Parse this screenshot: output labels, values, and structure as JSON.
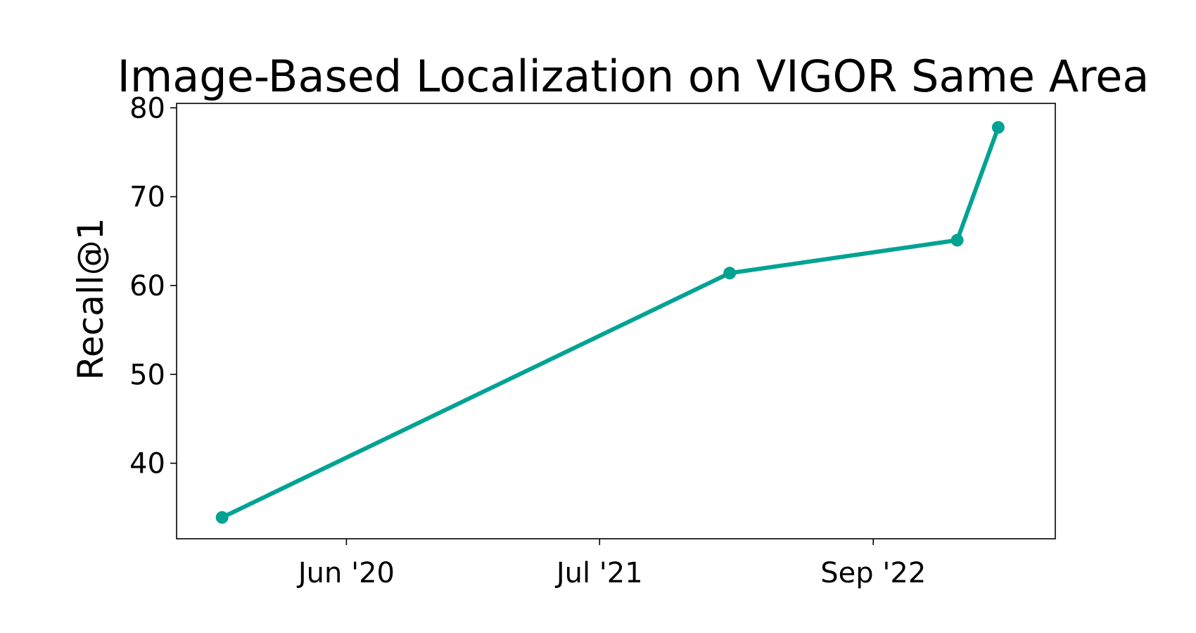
{
  "chart_data": {
    "type": "line",
    "title": "Image-Based Localization on VIGOR Same Area",
    "xlabel": "",
    "ylabel": "Recall@1",
    "x_type": "date",
    "x_ticks": [
      {
        "date": "2020-06-01",
        "label": "Jun '20"
      },
      {
        "date": "2021-07-01",
        "label": "Jul '21"
      },
      {
        "date": "2022-09-01",
        "label": "Sep '22"
      }
    ],
    "xlim": [
      "2019-09-10",
      "2023-06-12"
    ],
    "y_ticks": [
      40,
      50,
      60,
      70,
      80
    ],
    "ylim": [
      31.5,
      80.5
    ],
    "grid": false,
    "series": [
      {
        "color": "#00a393",
        "points": [
          {
            "x": "2019-11-20",
            "y": 33.9
          },
          {
            "x": "2022-01-20",
            "y": 61.4
          },
          {
            "x": "2023-01-10",
            "y": 65.1
          },
          {
            "x": "2023-03-15",
            "y": 77.8
          }
        ]
      }
    ]
  }
}
